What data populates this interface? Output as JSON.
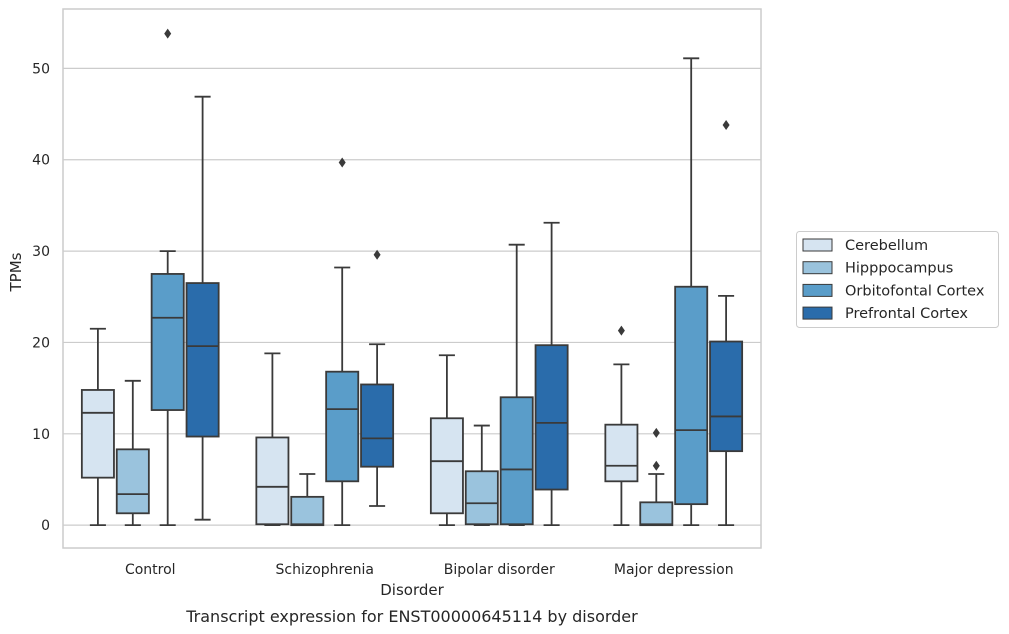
{
  "chart_data": {
    "type": "box",
    "title": "",
    "caption": "Transcript expression for ENST00000645114 by disorder",
    "xlabel": "Disorder",
    "ylabel": "TPMs",
    "ylim": [
      -2.5,
      56.5
    ],
    "yticks": [
      0,
      10,
      20,
      30,
      40,
      50
    ],
    "grid": true,
    "legend_placement": "right",
    "categories": [
      "Control",
      "Schizophrenia",
      "Bipolar disorder",
      "Major depression"
    ],
    "series": [
      {
        "name": "Cerebellum",
        "color": "#d6e4f1",
        "boxes": [
          {
            "whisker_low": 0,
            "q1": 5.2,
            "median": 12.3,
            "q3": 14.8,
            "whisker_high": 21.5,
            "outliers": []
          },
          {
            "whisker_low": 0,
            "q1": 0.1,
            "median": 4.2,
            "q3": 9.6,
            "whisker_high": 18.8,
            "outliers": []
          },
          {
            "whisker_low": 0,
            "q1": 1.3,
            "median": 7.0,
            "q3": 11.7,
            "whisker_high": 18.6,
            "outliers": []
          },
          {
            "whisker_low": 0,
            "q1": 4.8,
            "median": 6.5,
            "q3": 11.0,
            "whisker_high": 17.6,
            "outliers": [
              21.3
            ]
          }
        ]
      },
      {
        "name": "Hipppocampus",
        "color": "#9ac3dd",
        "boxes": [
          {
            "whisker_low": 0,
            "q1": 1.3,
            "median": 3.4,
            "q3": 8.3,
            "whisker_high": 15.8,
            "outliers": []
          },
          {
            "whisker_low": 0,
            "q1": 0,
            "median": 0.1,
            "q3": 3.1,
            "whisker_high": 5.6,
            "outliers": []
          },
          {
            "whisker_low": 0,
            "q1": 0.1,
            "median": 2.4,
            "q3": 5.9,
            "whisker_high": 10.9,
            "outliers": []
          },
          {
            "whisker_low": 0,
            "q1": 0,
            "median": 0.1,
            "q3": 2.5,
            "whisker_high": 5.6,
            "outliers": [
              6.5,
              10.1
            ]
          }
        ]
      },
      {
        "name": "Orbitofontal Cortex",
        "color": "#5a9dc9",
        "boxes": [
          {
            "whisker_low": 0,
            "q1": 12.6,
            "median": 22.7,
            "q3": 27.5,
            "whisker_high": 30.0,
            "outliers": [
              53.8
            ]
          },
          {
            "whisker_low": 0,
            "q1": 4.8,
            "median": 12.7,
            "q3": 16.8,
            "whisker_high": 28.2,
            "outliers": [
              39.7
            ]
          },
          {
            "whisker_low": 0,
            "q1": 0.1,
            "median": 6.1,
            "q3": 14.0,
            "whisker_high": 30.7,
            "outliers": []
          },
          {
            "whisker_low": 0,
            "q1": 2.3,
            "median": 10.4,
            "q3": 26.1,
            "whisker_high": 51.1,
            "outliers": []
          }
        ]
      },
      {
        "name": "Prefrontal Cortex",
        "color": "#2a6cab",
        "boxes": [
          {
            "whisker_low": 0.6,
            "q1": 9.7,
            "median": 19.6,
            "q3": 26.5,
            "whisker_high": 46.9,
            "outliers": []
          },
          {
            "whisker_low": 2.1,
            "q1": 6.4,
            "median": 9.5,
            "q3": 15.4,
            "whisker_high": 19.8,
            "outliers": [
              29.6
            ]
          },
          {
            "whisker_low": 0,
            "q1": 3.9,
            "median": 11.2,
            "q3": 19.7,
            "whisker_high": 33.1,
            "outliers": []
          },
          {
            "whisker_low": 0,
            "q1": 8.1,
            "median": 11.9,
            "q3": 20.1,
            "whisker_high": 25.1,
            "outliers": [
              43.8
            ]
          }
        ]
      }
    ]
  }
}
